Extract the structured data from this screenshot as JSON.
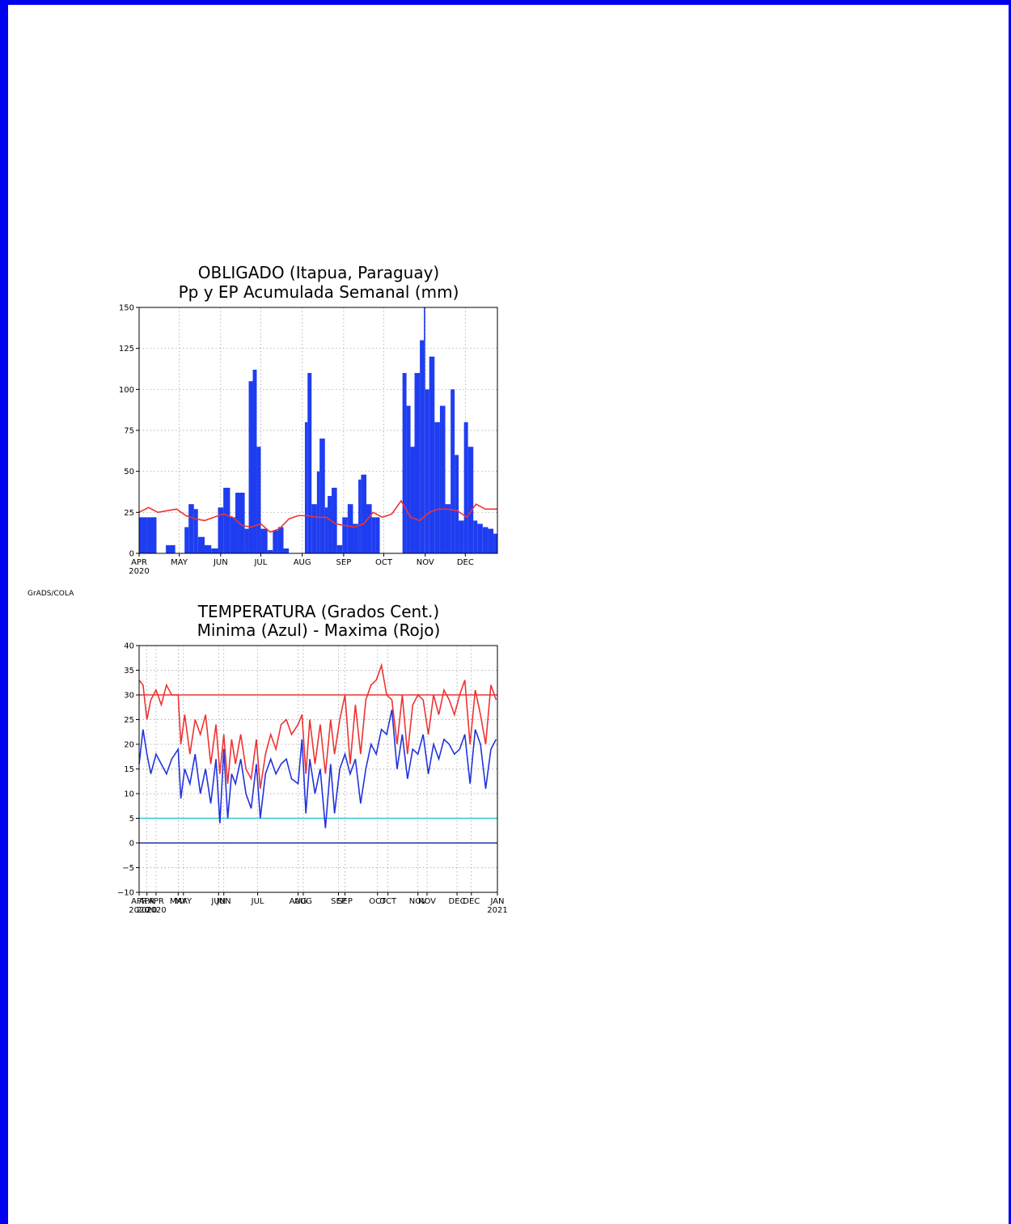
{
  "colors": {
    "frame": "#0000ee",
    "precip": "#1f3df0",
    "ep": "#ee3333",
    "tmin": "#2233dd",
    "tmax": "#ee3333",
    "ref30": "#ee3333",
    "ref5": "#33cccc",
    "ref0": "#2233aa"
  },
  "credit": "GrADS/COLA",
  "chart_data": [
    {
      "type": "bar",
      "title": "OBLIGADO (Itapua, Paraguay)",
      "subtitle": "Pp y EP Acumulada Semanal (mm)",
      "ylim": [
        0,
        150
      ],
      "yticks": [
        0,
        25,
        50,
        75,
        100,
        125,
        150
      ],
      "xlim": [
        "2020-04-01",
        "2020-12-25"
      ],
      "xticks": [
        {
          "date": "2020-04-01",
          "label": "APR",
          "sub": "2020"
        },
        {
          "date": "2020-05-01",
          "label": "MAY"
        },
        {
          "date": "2020-06-01",
          "label": "JUN"
        },
        {
          "date": "2020-07-01",
          "label": "JUL"
        },
        {
          "date": "2020-08-01",
          "label": "AUG"
        },
        {
          "date": "2020-09-01",
          "label": "SEP"
        },
        {
          "date": "2020-10-01",
          "label": "OCT"
        },
        {
          "date": "2020-11-01",
          "label": "NOV"
        },
        {
          "date": "2020-12-01",
          "label": "DEC"
        }
      ],
      "grid": true,
      "series": [
        {
          "kind": "bar",
          "x": [
            "2020-04-01",
            "2020-04-07",
            "2020-04-14",
            "2020-04-21",
            "2020-04-28",
            "2020-05-01",
            "2020-05-05",
            "2020-05-08",
            "2020-05-12",
            "2020-05-15",
            "2020-05-20",
            "2020-05-25",
            "2020-05-30",
            "2020-06-03",
            "2020-06-08",
            "2020-06-12",
            "2020-06-15",
            "2020-06-19",
            "2020-06-22",
            "2020-06-25",
            "2020-06-28",
            "2020-07-01",
            "2020-07-06",
            "2020-07-10",
            "2020-07-14",
            "2020-07-18",
            "2020-07-22",
            "2020-07-26",
            "2020-08-01",
            "2020-08-03",
            "2020-08-05",
            "2020-08-08",
            "2020-08-12",
            "2020-08-14",
            "2020-08-18",
            "2020-08-20",
            "2020-08-23",
            "2020-08-27",
            "2020-08-31",
            "2020-09-04",
            "2020-09-08",
            "2020-09-12",
            "2020-09-14",
            "2020-09-18",
            "2020-09-22",
            "2020-09-25",
            "2020-09-28",
            "2020-10-01",
            "2020-10-05",
            "2020-10-09",
            "2020-10-13",
            "2020-10-15",
            "2020-10-18",
            "2020-10-21",
            "2020-10-24",
            "2020-10-28",
            "2020-10-31",
            "2020-11-01",
            "2020-11-04",
            "2020-11-08",
            "2020-11-12",
            "2020-11-16",
            "2020-11-20",
            "2020-11-23",
            "2020-11-26",
            "2020-11-30",
            "2020-12-03",
            "2020-12-07",
            "2020-12-10",
            "2020-12-14",
            "2020-12-18",
            "2020-12-22",
            "2020-12-25"
          ],
          "values": [
            22,
            22,
            0,
            5,
            0,
            0,
            16,
            30,
            27,
            10,
            5,
            3,
            28,
            40,
            22,
            37,
            37,
            15,
            105,
            112,
            65,
            15,
            2,
            14,
            16,
            3,
            0,
            0,
            0,
            80,
            110,
            30,
            50,
            70,
            28,
            35,
            40,
            5,
            22,
            30,
            18,
            45,
            48,
            30,
            22,
            22,
            0,
            0,
            0,
            0,
            0,
            110,
            90,
            65,
            110,
            130,
            150,
            100,
            120,
            80,
            90,
            30,
            100,
            60,
            20,
            80,
            65,
            20,
            18,
            16,
            15,
            12,
            10
          ]
        },
        {
          "kind": "line",
          "x": [
            "2020-04-01",
            "2020-04-08",
            "2020-04-15",
            "2020-04-22",
            "2020-04-29",
            "2020-05-06",
            "2020-05-13",
            "2020-05-20",
            "2020-05-27",
            "2020-06-03",
            "2020-06-10",
            "2020-06-17",
            "2020-06-24",
            "2020-07-01",
            "2020-07-08",
            "2020-07-15",
            "2020-07-22",
            "2020-07-29",
            "2020-08-05",
            "2020-08-12",
            "2020-08-19",
            "2020-08-26",
            "2020-09-02",
            "2020-09-09",
            "2020-09-16",
            "2020-09-23",
            "2020-09-30",
            "2020-10-07",
            "2020-10-14",
            "2020-10-21",
            "2020-10-28",
            "2020-11-04",
            "2020-11-11",
            "2020-11-18",
            "2020-11-25",
            "2020-12-02",
            "2020-12-09",
            "2020-12-16",
            "2020-12-25"
          ],
          "values": [
            25,
            28,
            25,
            26,
            27,
            23,
            21,
            20,
            22,
            24,
            22,
            17,
            16,
            18,
            13,
            15,
            21,
            23,
            23,
            22,
            22,
            18,
            17,
            16,
            18,
            25,
            22,
            24,
            32,
            22,
            20,
            25,
            27,
            27,
            26,
            22,
            30,
            27,
            27
          ]
        }
      ]
    },
    {
      "type": "line",
      "title": "TEMPERATURA (Grados Cent.)",
      "subtitle": "Minima (Azul) - Maxima (Rojo)",
      "ylim": [
        -10,
        40
      ],
      "yticks": [
        -10,
        -5,
        0,
        5,
        10,
        15,
        20,
        25,
        30,
        35,
        40
      ],
      "xlim": [
        "2020-04-01",
        "2021-01-01"
      ],
      "xticks": [
        {
          "date": "2020-04-01",
          "label": "APR",
          "sub": "2020"
        },
        {
          "date": "2020-04-07",
          "label": "APR",
          "sub": "2020"
        },
        {
          "date": "2020-04-14",
          "label": "APR",
          "sub": "2020"
        },
        {
          "date": "2020-05-01",
          "label": "MAY"
        },
        {
          "date": "2020-05-05",
          "label": "MAY"
        },
        {
          "date": "2020-06-01",
          "label": "JUN"
        },
        {
          "date": "2020-06-05",
          "label": "JUN"
        },
        {
          "date": "2020-07-01",
          "label": "JUL"
        },
        {
          "date": "2020-08-01",
          "label": "AUG"
        },
        {
          "date": "2020-08-05",
          "label": "AUG"
        },
        {
          "date": "2020-09-01",
          "label": "SEP"
        },
        {
          "date": "2020-09-06",
          "label": "SEP"
        },
        {
          "date": "2020-10-01",
          "label": "OCT"
        },
        {
          "date": "2020-10-09",
          "label": "OCT"
        },
        {
          "date": "2020-11-01",
          "label": "NOV"
        },
        {
          "date": "2020-11-08",
          "label": "NOV"
        },
        {
          "date": "2020-12-01",
          "label": "DEC"
        },
        {
          "date": "2020-12-12",
          "label": "DEC"
        },
        {
          "date": "2021-01-01",
          "label": "JAN",
          "sub": "2021"
        }
      ],
      "grid": true,
      "reference_lines": [
        {
          "y": 30,
          "color": "#ee3333"
        },
        {
          "y": 5,
          "color": "#33cccc"
        },
        {
          "y": 0,
          "color": "#2233aa"
        }
      ],
      "series": [
        {
          "name": "Minima (Azul)",
          "x": [
            "2020-04-01",
            "2020-04-04",
            "2020-04-07",
            "2020-04-10",
            "2020-04-14",
            "2020-04-18",
            "2020-04-22",
            "2020-04-26",
            "2020-05-01",
            "2020-05-03",
            "2020-05-06",
            "2020-05-10",
            "2020-05-14",
            "2020-05-18",
            "2020-05-22",
            "2020-05-26",
            "2020-05-30",
            "2020-06-02",
            "2020-06-05",
            "2020-06-08",
            "2020-06-11",
            "2020-06-14",
            "2020-06-18",
            "2020-06-22",
            "2020-06-26",
            "2020-06-30",
            "2020-07-03",
            "2020-07-07",
            "2020-07-11",
            "2020-07-15",
            "2020-07-19",
            "2020-07-23",
            "2020-07-27",
            "2020-08-01",
            "2020-08-04",
            "2020-08-07",
            "2020-08-10",
            "2020-08-14",
            "2020-08-18",
            "2020-08-22",
            "2020-08-26",
            "2020-08-29",
            "2020-09-02",
            "2020-09-06",
            "2020-09-10",
            "2020-09-14",
            "2020-09-18",
            "2020-09-22",
            "2020-09-26",
            "2020-09-30",
            "2020-10-04",
            "2020-10-08",
            "2020-10-12",
            "2020-10-16",
            "2020-10-20",
            "2020-10-24",
            "2020-10-28",
            "2020-11-01",
            "2020-11-05",
            "2020-11-09",
            "2020-11-13",
            "2020-11-17",
            "2020-11-21",
            "2020-11-25",
            "2020-11-29",
            "2020-12-03",
            "2020-12-07",
            "2020-12-11",
            "2020-12-15",
            "2020-12-19",
            "2020-12-23",
            "2020-12-27",
            "2020-12-31"
          ],
          "values": [
            16,
            23,
            18,
            14,
            18,
            16,
            14,
            17,
            19,
            9,
            15,
            12,
            18,
            10,
            15,
            8,
            17,
            4,
            19,
            5,
            14,
            12,
            17,
            10,
            7,
            16,
            5,
            14,
            17,
            14,
            16,
            17,
            13,
            12,
            21,
            6,
            17,
            10,
            15,
            3,
            16,
            6,
            15,
            18,
            14,
            17,
            8,
            15,
            20,
            18,
            23,
            22,
            27,
            15,
            22,
            13,
            19,
            18,
            22,
            14,
            20,
            17,
            21,
            20,
            18,
            19,
            22,
            12,
            23,
            20,
            11,
            19,
            21
          ]
        },
        {
          "name": "Maxima (Rojo)",
          "x": [
            "2020-04-01",
            "2020-04-04",
            "2020-04-07",
            "2020-04-10",
            "2020-04-14",
            "2020-04-18",
            "2020-04-22",
            "2020-04-26",
            "2020-05-01",
            "2020-05-03",
            "2020-05-06",
            "2020-05-10",
            "2020-05-14",
            "2020-05-18",
            "2020-05-22",
            "2020-05-26",
            "2020-05-30",
            "2020-06-02",
            "2020-06-05",
            "2020-06-08",
            "2020-06-11",
            "2020-06-14",
            "2020-06-18",
            "2020-06-22",
            "2020-06-26",
            "2020-06-30",
            "2020-07-03",
            "2020-07-07",
            "2020-07-11",
            "2020-07-15",
            "2020-07-19",
            "2020-07-23",
            "2020-07-27",
            "2020-08-01",
            "2020-08-04",
            "2020-08-07",
            "2020-08-10",
            "2020-08-14",
            "2020-08-18",
            "2020-08-22",
            "2020-08-26",
            "2020-08-29",
            "2020-09-02",
            "2020-09-06",
            "2020-09-10",
            "2020-09-14",
            "2020-09-18",
            "2020-09-22",
            "2020-09-26",
            "2020-09-30",
            "2020-10-04",
            "2020-10-08",
            "2020-10-12",
            "2020-10-16",
            "2020-10-20",
            "2020-10-24",
            "2020-10-28",
            "2020-11-01",
            "2020-11-05",
            "2020-11-09",
            "2020-11-13",
            "2020-11-17",
            "2020-11-21",
            "2020-11-25",
            "2020-11-29",
            "2020-12-03",
            "2020-12-07",
            "2020-12-11",
            "2020-12-15",
            "2020-12-19",
            "2020-12-23",
            "2020-12-27",
            "2020-12-31"
          ],
          "values": [
            33,
            32,
            25,
            29,
            31,
            28,
            32,
            30,
            30,
            20,
            26,
            18,
            25,
            22,
            26,
            16,
            24,
            14,
            22,
            12,
            21,
            16,
            22,
            15,
            13,
            21,
            11,
            18,
            22,
            19,
            24,
            25,
            22,
            24,
            26,
            14,
            25,
            16,
            24,
            14,
            25,
            18,
            25,
            30,
            16,
            28,
            18,
            29,
            32,
            33,
            36,
            30,
            29,
            20,
            30,
            18,
            28,
            30,
            29,
            22,
            30,
            26,
            31,
            29,
            26,
            30,
            33,
            20,
            31,
            26,
            20,
            32,
            29
          ]
        }
      ]
    }
  ]
}
